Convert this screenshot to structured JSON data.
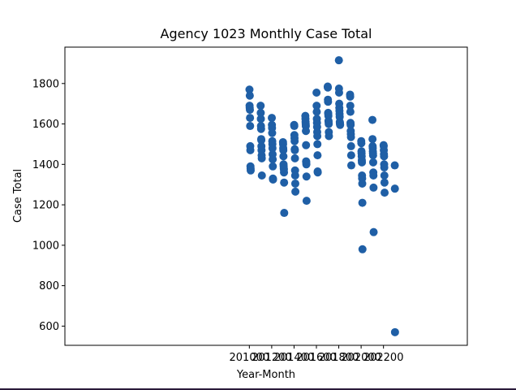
{
  "chart_data": {
    "type": "scatter",
    "title": "Agency 1023 Monthly Case Total",
    "xlabel": "Year-Month",
    "ylabel": "Case Total",
    "xlim": [
      199350,
      202950
    ],
    "ylim": [
      505,
      1980
    ],
    "xticks": [
      201000,
      201200,
      201400,
      201600,
      201800,
      202000,
      202200
    ],
    "yticks": [
      600,
      800,
      1000,
      1200,
      1400,
      1600,
      1800
    ],
    "grid": false,
    "marker_color": "#1f5fa6",
    "points": [
      [
        201001,
        1770
      ],
      [
        201002,
        1690
      ],
      [
        201003,
        1680
      ],
      [
        201004,
        1740
      ],
      [
        201005,
        1670
      ],
      [
        201006,
        1630
      ],
      [
        201007,
        1590
      ],
      [
        201008,
        1490
      ],
      [
        201009,
        1470
      ],
      [
        201010,
        1390
      ],
      [
        201011,
        1380
      ],
      [
        201012,
        1370
      ],
      [
        201101,
        1690
      ],
      [
        201102,
        1655
      ],
      [
        201103,
        1625
      ],
      [
        201104,
        1590
      ],
      [
        201105,
        1575
      ],
      [
        201106,
        1525
      ],
      [
        201107,
        1520
      ],
      [
        201108,
        1490
      ],
      [
        201109,
        1470
      ],
      [
        201110,
        1445
      ],
      [
        201111,
        1430
      ],
      [
        201112,
        1345
      ],
      [
        201201,
        1630
      ],
      [
        201202,
        1595
      ],
      [
        201203,
        1580
      ],
      [
        201204,
        1555
      ],
      [
        201205,
        1515
      ],
      [
        201206,
        1500
      ],
      [
        201207,
        1480
      ],
      [
        201208,
        1450
      ],
      [
        201209,
        1425
      ],
      [
        201210,
        1390
      ],
      [
        201211,
        1330
      ],
      [
        201212,
        1325
      ],
      [
        201301,
        1510
      ],
      [
        201302,
        1500
      ],
      [
        201303,
        1480
      ],
      [
        201304,
        1470
      ],
      [
        201305,
        1440
      ],
      [
        201306,
        1400
      ],
      [
        201307,
        1390
      ],
      [
        201308,
        1380
      ],
      [
        201309,
        1375
      ],
      [
        201310,
        1360
      ],
      [
        201311,
        1310
      ],
      [
        201312,
        1160
      ],
      [
        201401,
        1595
      ],
      [
        201402,
        1590
      ],
      [
        201403,
        1545
      ],
      [
        201404,
        1530
      ],
      [
        201405,
        1515
      ],
      [
        201406,
        1475
      ],
      [
        201407,
        1470
      ],
      [
        201408,
        1430
      ],
      [
        201409,
        1370
      ],
      [
        201410,
        1345
      ],
      [
        201411,
        1305
      ],
      [
        201412,
        1265
      ],
      [
        201501,
        1640
      ],
      [
        201502,
        1625
      ],
      [
        201503,
        1610
      ],
      [
        201504,
        1600
      ],
      [
        201505,
        1590
      ],
      [
        201506,
        1565
      ],
      [
        201507,
        1495
      ],
      [
        201508,
        1415
      ],
      [
        201509,
        1410
      ],
      [
        201510,
        1400
      ],
      [
        201511,
        1340
      ],
      [
        201512,
        1220
      ],
      [
        201601,
        1755
      ],
      [
        201602,
        1690
      ],
      [
        201603,
        1660
      ],
      [
        201604,
        1625
      ],
      [
        201605,
        1605
      ],
      [
        201606,
        1585
      ],
      [
        201607,
        1560
      ],
      [
        201608,
        1540
      ],
      [
        201609,
        1500
      ],
      [
        201610,
        1445
      ],
      [
        201611,
        1365
      ],
      [
        201612,
        1360
      ],
      [
        201701,
        1785
      ],
      [
        201702,
        1780
      ],
      [
        201703,
        1720
      ],
      [
        201704,
        1710
      ],
      [
        201705,
        1655
      ],
      [
        201706,
        1650
      ],
      [
        201707,
        1640
      ],
      [
        201708,
        1615
      ],
      [
        201709,
        1610
      ],
      [
        201710,
        1600
      ],
      [
        201711,
        1560
      ],
      [
        201712,
        1540
      ],
      [
        201801,
        1915
      ],
      [
        201802,
        1775
      ],
      [
        201803,
        1755
      ],
      [
        201804,
        1700
      ],
      [
        201805,
        1680
      ],
      [
        201806,
        1665
      ],
      [
        201807,
        1650
      ],
      [
        201808,
        1635
      ],
      [
        201809,
        1610
      ],
      [
        201810,
        1605
      ],
      [
        201811,
        1600
      ],
      [
        201812,
        1595
      ],
      [
        201901,
        1745
      ],
      [
        201902,
        1735
      ],
      [
        201903,
        1690
      ],
      [
        201904,
        1660
      ],
      [
        201905,
        1605
      ],
      [
        201906,
        1595
      ],
      [
        201907,
        1565
      ],
      [
        201908,
        1550
      ],
      [
        201909,
        1535
      ],
      [
        201910,
        1490
      ],
      [
        201911,
        1445
      ],
      [
        201912,
        1395
      ],
      [
        202001,
        1515
      ],
      [
        202002,
        1505
      ],
      [
        202003,
        1465
      ],
      [
        202004,
        1455
      ],
      [
        202005,
        1440
      ],
      [
        202006,
        1420
      ],
      [
        202007,
        1410
      ],
      [
        202008,
        1345
      ],
      [
        202009,
        1330
      ],
      [
        202010,
        1305
      ],
      [
        202011,
        1210
      ],
      [
        202012,
        980
      ],
      [
        202101,
        1620
      ],
      [
        202102,
        1525
      ],
      [
        202103,
        1490
      ],
      [
        202104,
        1480
      ],
      [
        202105,
        1465
      ],
      [
        202106,
        1455
      ],
      [
        202107,
        1445
      ],
      [
        202108,
        1410
      ],
      [
        202109,
        1360
      ],
      [
        202110,
        1345
      ],
      [
        202111,
        1285
      ],
      [
        202112,
        1065
      ],
      [
        202201,
        1495
      ],
      [
        202202,
        1490
      ],
      [
        202203,
        1470
      ],
      [
        202204,
        1450
      ],
      [
        202205,
        1440
      ],
      [
        202206,
        1400
      ],
      [
        202207,
        1385
      ],
      [
        202208,
        1345
      ],
      [
        202209,
        1310
      ],
      [
        202210,
        1260
      ],
      [
        202301,
        1395
      ],
      [
        202302,
        1280
      ],
      [
        202303,
        570
      ]
    ]
  }
}
